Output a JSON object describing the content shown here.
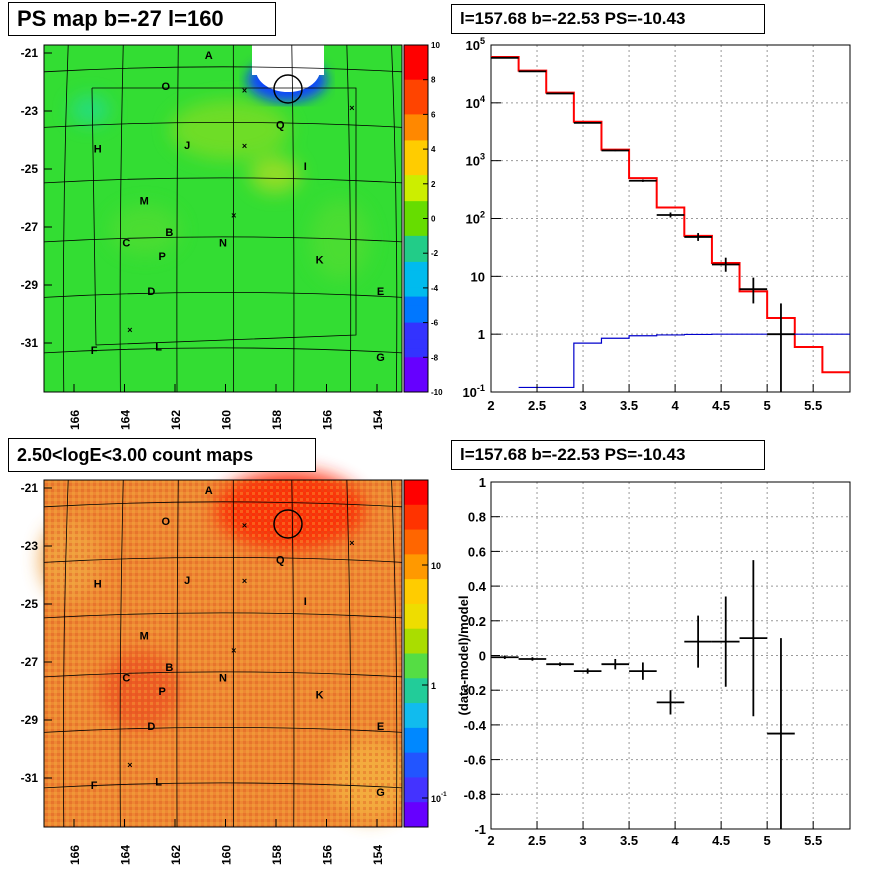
{
  "panels": {
    "top_left_title": "PS map b=-27 l=160",
    "top_right_title": "l=157.68 b=-22.53 PS=-10.43",
    "bottom_left_title": "2.50<logE<3.00 count maps",
    "bottom_right_title": "l=157.68 b=-22.53 PS=-10.43"
  },
  "chart_data": [
    {
      "type": "heatmap",
      "title": "PS map b=-27 l=160",
      "x_ticks": [
        "166",
        "164",
        "162",
        "160",
        "158",
        "156",
        "154"
      ],
      "y_ticks": [
        "-21",
        "-23",
        "-25",
        "-27",
        "-29",
        "-31"
      ],
      "colorbar": {
        "min": -10,
        "max": 10,
        "ticks": [
          "10",
          "8",
          "6",
          "4",
          "2",
          "0",
          "-2",
          "-4",
          "-6",
          "-8",
          "-10"
        ]
      },
      "source_labels": [
        "A",
        "O",
        "Q",
        "H",
        "J",
        "I",
        "M",
        "C",
        "B",
        "P",
        "N",
        "K",
        "D",
        "E",
        "F",
        "L",
        "G"
      ],
      "colors": {
        "field": "#33dd33",
        "bright": "#ffffff",
        "colorbar": [
          "#ff0000",
          "#ff4400",
          "#ff8800",
          "#ffcc00",
          "#ccee00",
          "#66dd00",
          "#22cc88",
          "#00bbee",
          "#0077ff",
          "#3333ff",
          "#6600ff"
        ]
      }
    },
    {
      "type": "line",
      "title": "l=157.68 b=-22.53 PS=-10.43",
      "xlim": [
        2.0,
        5.9
      ],
      "ylim": [
        0.1,
        100000
      ],
      "yscale": "log",
      "x_ticks": [
        "2",
        "2.5",
        "3",
        "3.5",
        "4",
        "4.5",
        "5",
        "5.5"
      ],
      "y_ticks": [
        "10^5",
        "10^4",
        "10^3",
        "10^2",
        "10",
        "1",
        "10^-1"
      ],
      "series": [
        {
          "step_edges": [
            2.0,
            2.3,
            2.6,
            2.9,
            3.2,
            3.5,
            3.8,
            4.1,
            4.4,
            4.7,
            5.0,
            5.3,
            5.6,
            5.9
          ],
          "values": [
            62000,
            36000,
            15000,
            4700,
            1550,
            500,
            155,
            50,
            17,
            5.5,
            1.9,
            0.6,
            0.22
          ],
          "color": "#ff0000"
        },
        {
          "step_edges": [
            2.3,
            2.6,
            2.9,
            3.2,
            3.5,
            3.8,
            4.1,
            4.4,
            4.7,
            5.0,
            5.3,
            5.6,
            5.9
          ],
          "values": [
            0.12,
            0.12,
            0.7,
            0.85,
            0.94,
            0.97,
            0.99,
            1.0,
            1.0,
            1.0,
            1.0,
            1.0
          ],
          "color": "#0000cc"
        },
        {
          "points": [
            {
              "x": 2.15,
              "y": 60000,
              "yerr": [
                60000,
                60000
              ]
            },
            {
              "x": 2.45,
              "y": 35000,
              "yerr": [
                35000,
                35000
              ]
            },
            {
              "x": 2.75,
              "y": 14500,
              "yerr": [
                14500,
                14500
              ]
            },
            {
              "x": 3.05,
              "y": 4500,
              "yerr": [
                4400,
                4600
              ]
            },
            {
              "x": 3.35,
              "y": 1500,
              "yerr": [
                1460,
                1540
              ]
            },
            {
              "x": 3.65,
              "y": 450,
              "yerr": [
                430,
                470
              ]
            },
            {
              "x": 3.95,
              "y": 115,
              "yerr": [
                104,
                127
              ]
            },
            {
              "x": 4.25,
              "y": 48,
              "yerr": [
                41,
                56
              ]
            },
            {
              "x": 4.55,
              "y": 16,
              "yerr": [
                12,
                21
              ]
            },
            {
              "x": 4.85,
              "y": 6,
              "yerr": [
                3.4,
                9.5
              ]
            },
            {
              "x": 5.15,
              "y": 1.0,
              "yerr": [
                0.1,
                3.4
              ]
            }
          ],
          "color": "#000000"
        }
      ]
    },
    {
      "type": "heatmap",
      "title": "2.50<logE<3.00 count maps",
      "x_ticks": [
        "166",
        "164",
        "162",
        "160",
        "158",
        "156",
        "154"
      ],
      "y_ticks": [
        "-21",
        "-23",
        "-25",
        "-27",
        "-29",
        "-31"
      ],
      "colorbar": {
        "scale": "log",
        "ticks": [
          "10",
          "1",
          "10^-1"
        ]
      },
      "source_labels": [
        "A",
        "O",
        "Q",
        "H",
        "J",
        "I",
        "M",
        "C",
        "B",
        "P",
        "N",
        "K",
        "D",
        "E",
        "F",
        "L",
        "G"
      ],
      "colors": {
        "field": "#ee8833",
        "hot": "#ff2200"
      }
    },
    {
      "type": "scatter",
      "title": "l=157.68 b=-22.53 PS=-10.43",
      "ylabel": "(data-model)/model",
      "xlim": [
        2.0,
        5.9
      ],
      "ylim": [
        -1,
        1
      ],
      "x_ticks": [
        "2",
        "2.5",
        "3",
        "3.5",
        "4",
        "4.5",
        "5",
        "5.5"
      ],
      "y_ticks": [
        "1",
        "0.8",
        "0.6",
        "0.4",
        "0.2",
        "0",
        "-0.2",
        "-0.4",
        "-0.6",
        "-0.8",
        "-1"
      ],
      "points": [
        {
          "x": 2.15,
          "y": -0.01,
          "yerr": 0.01
        },
        {
          "x": 2.45,
          "y": -0.02,
          "yerr": 0.01
        },
        {
          "x": 2.75,
          "y": -0.05,
          "yerr": 0.01
        },
        {
          "x": 3.05,
          "y": -0.09,
          "yerr": 0.015
        },
        {
          "x": 3.35,
          "y": -0.05,
          "yerr": 0.03
        },
        {
          "x": 3.65,
          "y": -0.09,
          "yerr": 0.05
        },
        {
          "x": 3.95,
          "y": -0.27,
          "yerr": 0.07
        },
        {
          "x": 4.25,
          "y": 0.08,
          "yerr": 0.15
        },
        {
          "x": 4.55,
          "y": 0.08,
          "yerr": 0.26
        },
        {
          "x": 4.85,
          "y": 0.1,
          "yerr": 0.45
        },
        {
          "x": 5.15,
          "y": -0.45,
          "yerr": 0.55
        }
      ],
      "xerr": 0.15
    }
  ]
}
